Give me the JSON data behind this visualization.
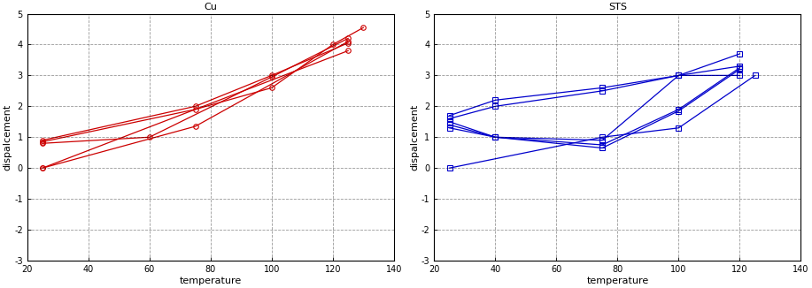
{
  "cu_lines": [
    {
      "x": [
        25,
        125
      ],
      "y": [
        0.0,
        3.8
      ]
    },
    {
      "x": [
        25,
        75,
        125
      ],
      "y": [
        0.0,
        1.35,
        4.1
      ]
    },
    {
      "x": [
        25,
        60,
        100,
        125
      ],
      "y": [
        0.8,
        1.0,
        2.95,
        4.2
      ]
    },
    {
      "x": [
        25,
        75,
        100,
        120,
        130
      ],
      "y": [
        0.85,
        1.9,
        2.6,
        4.0,
        4.55
      ]
    },
    {
      "x": [
        25,
        75,
        100,
        125
      ],
      "y": [
        0.9,
        2.0,
        3.0,
        4.05
      ]
    }
  ],
  "sts_lines": [
    {
      "x": [
        25,
        75,
        100,
        125
      ],
      "y": [
        0.0,
        1.0,
        1.3,
        3.0
      ]
    },
    {
      "x": [
        25,
        40,
        75,
        100,
        120
      ],
      "y": [
        1.3,
        1.0,
        0.65,
        1.85,
        3.2
      ]
    },
    {
      "x": [
        25,
        40,
        75,
        100,
        120
      ],
      "y": [
        1.4,
        1.0,
        0.75,
        1.9,
        3.25
      ]
    },
    {
      "x": [
        25,
        40,
        75,
        100,
        120
      ],
      "y": [
        1.5,
        1.0,
        0.9,
        3.0,
        3.3
      ]
    },
    {
      "x": [
        25,
        40,
        75,
        100,
        120
      ],
      "y": [
        1.6,
        2.0,
        2.5,
        3.0,
        3.7
      ]
    },
    {
      "x": [
        25,
        40,
        75,
        100,
        120
      ],
      "y": [
        1.7,
        2.2,
        2.6,
        3.0,
        3.0
      ]
    }
  ],
  "cu_color": "#cc0000",
  "sts_color": "#0000cc",
  "cu_title": "Cu",
  "sts_title": "STS",
  "xlabel": "temperature",
  "ylabel": "dispalcement",
  "xlim": [
    20,
    140
  ],
  "ylim": [
    -3,
    5
  ],
  "yticks": [
    -3,
    -2,
    -1,
    0,
    1,
    2,
    3,
    4,
    5
  ],
  "xticks": [
    20,
    40,
    60,
    80,
    100,
    120,
    140
  ],
  "xticklabels": [
    "20",
    "40",
    "60",
    "80",
    "100",
    "120",
    "140"
  ],
  "fig_width": 9.17,
  "fig_height": 3.26,
  "dpi": 100
}
